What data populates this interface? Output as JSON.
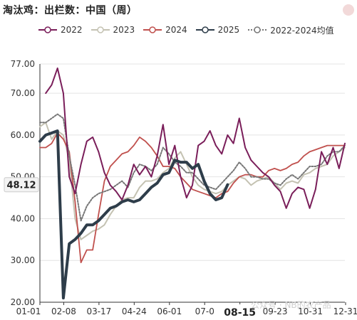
{
  "colors": {
    "2022": "#7a1e5a",
    "2023": "#c4c2b2",
    "2024": "#c0504d",
    "2025": "#2e3d4a",
    "avg": "#777777",
    "grid": "#e4e4e4",
    "axis": "#333333",
    "badge_bg": "#f3f3f3"
  },
  "chart_data": {
    "type": "line",
    "title": "淘汰鸡：出栏数：中国（周）",
    "xlabel": "",
    "ylabel": "",
    "ylim": [
      20,
      77
    ],
    "yticks": [
      "77.00",
      "70.00",
      "60.00",
      "50.00",
      "40.00",
      "30.00",
      "20.00"
    ],
    "xticks": [
      "01-01",
      "02-08",
      "03-17",
      "04-24",
      "06-01",
      "07-0",
      "08-15",
      "09-23",
      "10-31",
      "12-31"
    ],
    "x_range_weeks": [
      1,
      53
    ],
    "grid": true,
    "legend_position": "top",
    "series": [
      {
        "name": "2022",
        "week": [
          2,
          3,
          4,
          5,
          6,
          7,
          8,
          9,
          10,
          11,
          12,
          13,
          14,
          15,
          16,
          17,
          18,
          19,
          20,
          21,
          22,
          23,
          24,
          25,
          26,
          27,
          28,
          29,
          30,
          31,
          32,
          33,
          34,
          35,
          36,
          37,
          38,
          39,
          40,
          41,
          42,
          43,
          44,
          45,
          46,
          47,
          48,
          49,
          50,
          51,
          52,
          53
        ],
        "values": [
          70,
          72,
          76,
          70,
          50,
          46,
          53,
          58.5,
          59.5,
          56,
          51,
          48,
          46.5,
          44.5,
          48,
          53,
          50.5,
          52.5,
          50,
          55,
          62.5,
          53,
          57.5,
          50,
          45,
          48,
          57.5,
          58.5,
          61,
          57.5,
          55.5,
          60,
          58,
          64,
          57,
          54,
          52.5,
          51,
          50,
          48,
          46.5,
          42.5,
          46,
          47.5,
          47,
          42.5,
          47,
          56,
          53,
          57,
          52,
          58
        ]
      },
      {
        "name": "2023",
        "week": [
          1,
          2,
          3,
          4,
          5,
          6,
          7,
          8,
          9,
          10,
          11,
          12,
          13,
          14,
          15,
          16,
          17,
          18,
          19,
          20,
          21,
          22,
          23,
          24,
          25,
          26,
          27,
          28,
          29,
          30,
          31,
          32,
          33,
          34,
          35,
          36,
          37,
          38,
          39,
          40,
          41,
          42,
          43,
          44,
          45,
          46,
          47,
          48,
          49,
          50,
          51,
          52,
          53
        ],
        "values": [
          62,
          63,
          59,
          61,
          60,
          54,
          40,
          35,
          36,
          37,
          37.5,
          38.5,
          41,
          43,
          44.5,
          45,
          45,
          47.5,
          49,
          49,
          49.5,
          51,
          52,
          54.5,
          56,
          53,
          50,
          48,
          47,
          46.5,
          46,
          46.5,
          48,
          49,
          50,
          49.5,
          48,
          49,
          49.5,
          50,
          48.5,
          47,
          48.5,
          49,
          48.5,
          50.5,
          51,
          52,
          52.5,
          53,
          55,
          56,
          57
        ]
      },
      {
        "name": "2024",
        "week": [
          1,
          2,
          3,
          4,
          5,
          6,
          7,
          8,
          9,
          10,
          11,
          12,
          13,
          14,
          15,
          16,
          17,
          18,
          19,
          20,
          21,
          22,
          23,
          24,
          25,
          26,
          27,
          28,
          29,
          30,
          31,
          32,
          33,
          34,
          35,
          36,
          37,
          38,
          39,
          40,
          41,
          42,
          43,
          44,
          45,
          46,
          47,
          48,
          49,
          50,
          51,
          52,
          53
        ],
        "values": [
          57,
          57,
          58,
          60.5,
          59,
          56,
          44,
          29.5,
          32.5,
          32.5,
          41,
          49,
          52.5,
          54,
          55.5,
          56,
          57.5,
          59.5,
          58.5,
          57,
          55,
          52.5,
          52.5,
          52,
          50,
          48.5,
          47,
          46.5,
          46,
          45.5,
          45,
          46,
          46.5,
          48.5,
          50,
          50.5,
          50.5,
          50,
          50,
          51.5,
          52,
          51.5,
          52,
          53,
          53.5,
          55,
          56,
          56.5,
          57,
          57.5,
          57.5,
          57.5,
          57.5
        ]
      },
      {
        "name": "2025",
        "week": [
          1,
          2,
          3,
          4,
          5,
          6,
          7,
          8,
          9,
          10,
          11,
          12,
          13,
          14,
          15,
          16,
          17,
          18,
          19,
          20,
          21,
          22,
          23,
          24,
          25,
          26,
          27,
          28,
          29,
          30,
          31,
          32,
          33
        ],
        "values": [
          58.5,
          60,
          60.5,
          61,
          21,
          34,
          35,
          36.5,
          38.5,
          38.5,
          39.5,
          41,
          42.5,
          43,
          44,
          44.5,
          44,
          44.5,
          46,
          47.5,
          48.5,
          50.5,
          51,
          54,
          53.5,
          53.5,
          52,
          53,
          49,
          46,
          44.5,
          45,
          48.12
        ]
      },
      {
        "name": "2022-2024均值",
        "week": [
          1,
          2,
          3,
          4,
          5,
          6,
          7,
          8,
          9,
          10,
          11,
          12,
          13,
          14,
          15,
          16,
          17,
          18,
          19,
          20,
          21,
          22,
          23,
          24,
          25,
          26,
          27,
          28,
          29,
          30,
          31,
          32,
          33,
          34,
          35,
          36,
          37,
          38,
          39,
          40,
          41,
          42,
          43,
          44,
          45,
          46,
          47,
          48,
          49,
          50,
          51,
          52,
          53
        ],
        "values": [
          63,
          63,
          64,
          65,
          64,
          55,
          48,
          39.5,
          43,
          45,
          46,
          46.5,
          47,
          48,
          49,
          47.5,
          51,
          53,
          52.5,
          51.5,
          53,
          57,
          55.5,
          53.5,
          52.5,
          51,
          51,
          49.5,
          48,
          47.5,
          47,
          48.5,
          50,
          51.5,
          53.5,
          52,
          50,
          50,
          49.5,
          49.5,
          48.5,
          48,
          49.5,
          50.5,
          49.5,
          51,
          52.5,
          52.5,
          53,
          55,
          56,
          56,
          57.5
        ]
      }
    ],
    "current_value": {
      "label": "48.12",
      "value": 48.12
    },
    "current_date": "08-15"
  },
  "watermark": "公众号 · NB的农产品"
}
